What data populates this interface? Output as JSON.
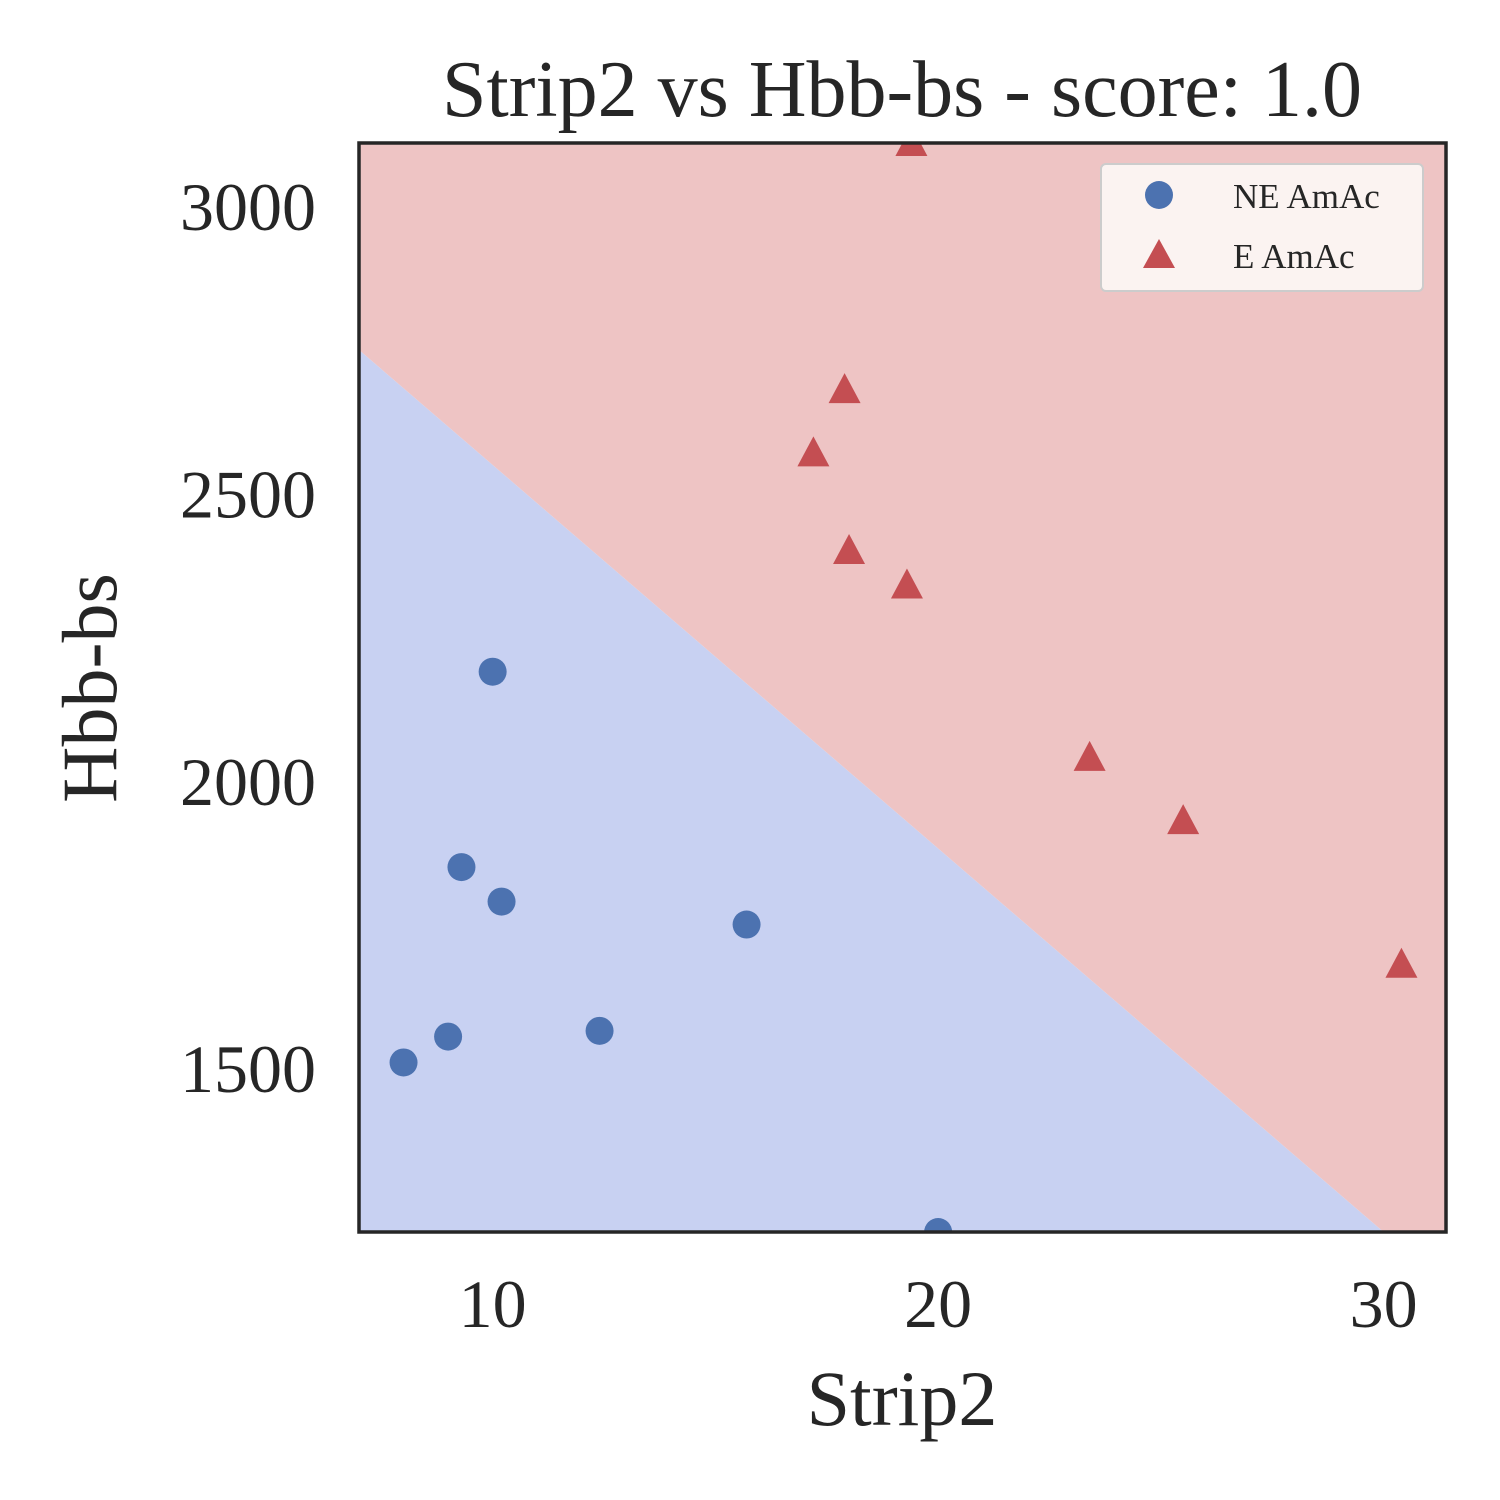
{
  "chart_data": {
    "type": "scatter",
    "title": "Strip2 vs Hbb-bs - score: 1.0",
    "xlabel": "Strip2",
    "ylabel": "Hbb-bs",
    "xlim": [
      7,
      31.4
    ],
    "ylim": [
      1215,
      3110
    ],
    "xticks": [
      10,
      20,
      30
    ],
    "yticks": [
      1500,
      2000,
      2500,
      3000
    ],
    "grid": false,
    "legend_position": "top-right",
    "decision_boundary": {
      "points": [
        [
          7,
          2750
        ],
        [
          30,
          1215
        ]
      ],
      "region_colors": {
        "below": "#c8d1f2",
        "above": "#eec4c4"
      }
    },
    "series": [
      {
        "name": "NE AmAc",
        "marker": "circle",
        "color": "#4c72b0",
        "x": [
          8.0,
          9.0,
          9.3,
          10.0,
          10.2,
          12.4,
          15.7,
          20.0
        ],
        "y": [
          1510,
          1555,
          1850,
          2190,
          1790,
          1565,
          1750,
          1215
        ]
      },
      {
        "name": "E AmAc",
        "marker": "triangle",
        "color": "#c44e52",
        "x": [
          17.2,
          17.9,
          18.0,
          19.3,
          19.4,
          23.4,
          25.5,
          30.4
        ],
        "y": [
          2570,
          2680,
          2400,
          2340,
          3110,
          2040,
          1930,
          1680
        ]
      }
    ]
  }
}
